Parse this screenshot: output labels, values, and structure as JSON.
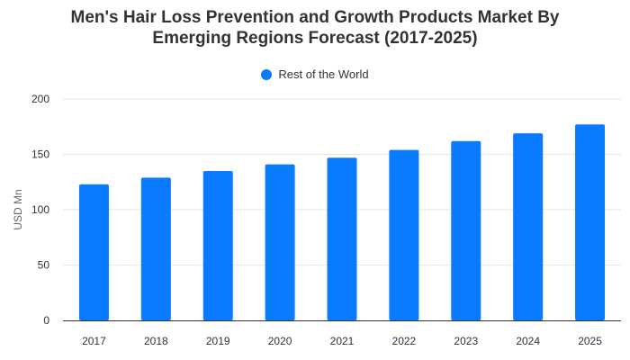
{
  "chart_data": {
    "type": "bar",
    "title_lines": [
      "Men's Hair Loss Prevention and Growth Products Market By",
      "Emerging Regions Forecast (2017-2025)"
    ],
    "categories": [
      "2017",
      "2018",
      "2019",
      "2020",
      "2021",
      "2022",
      "2023",
      "2024",
      "2025"
    ],
    "series": [
      {
        "name": "Rest of the World",
        "color": "#0a7bff",
        "values": [
          123,
          129,
          135,
          141,
          147,
          154,
          162,
          169,
          177
        ]
      }
    ],
    "xlabel": "",
    "ylabel": "USD Mn",
    "ylim": [
      0,
      200
    ],
    "yticks": [
      0,
      50,
      100,
      150,
      200
    ],
    "grid": true,
    "legend_position": "top-center"
  }
}
